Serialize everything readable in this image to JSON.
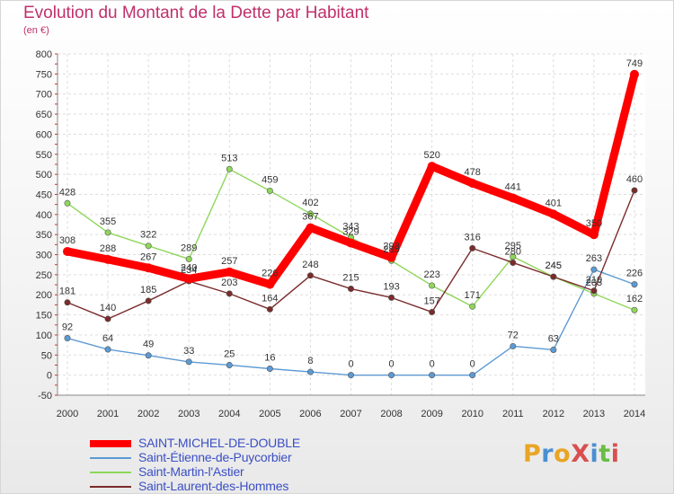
{
  "title": "Evolution du Montant de la Dette par Habitant",
  "subtitle": "(en €)",
  "logo": {
    "text": "ProXiti",
    "colors": [
      "#e8a526",
      "#4a8fd1",
      "#e8a526",
      "#d94f4f",
      "#4a8fd1",
      "#6bbd45",
      "#d94f4f"
    ]
  },
  "chart_data": {
    "type": "line",
    "categories": [
      "2000",
      "2001",
      "2002",
      "2003",
      "2004",
      "2005",
      "2006",
      "2007",
      "2008",
      "2009",
      "2010",
      "2011",
      "2012",
      "2013",
      "2014"
    ],
    "ylim": [
      -50,
      800
    ],
    "yticks": [
      -50,
      0,
      50,
      100,
      150,
      200,
      250,
      300,
      350,
      400,
      450,
      500,
      550,
      600,
      650,
      700,
      750,
      800
    ],
    "grid": true,
    "series": [
      {
        "name": "SAINT-MICHEL-DE-DOUBLE",
        "color": "#ff0000",
        "values": [
          308,
          288,
          267,
          240,
          257,
          226,
          367,
          329,
          293,
          520,
          478,
          441,
          401,
          350,
          749
        ]
      },
      {
        "name": "Saint-Étienne-de-Puycorbier",
        "color": "#5d9ad3",
        "values": [
          92,
          64,
          49,
          33,
          25,
          16,
          8,
          0,
          0,
          0,
          0,
          72,
          63,
          263,
          226
        ]
      },
      {
        "name": "Saint-Martin-l'Astier",
        "color": "#8fd65a",
        "values": [
          428,
          355,
          322,
          289,
          513,
          459,
          402,
          343,
          285,
          223,
          171,
          295,
          245,
          203,
          162
        ]
      },
      {
        "name": "Saint-Laurent-des-Hommes",
        "color": "#7a2b2b",
        "values": [
          181,
          140,
          185,
          234,
          203,
          164,
          248,
          215,
          193,
          157,
          316,
          280,
          245,
          210,
          460
        ]
      }
    ]
  }
}
